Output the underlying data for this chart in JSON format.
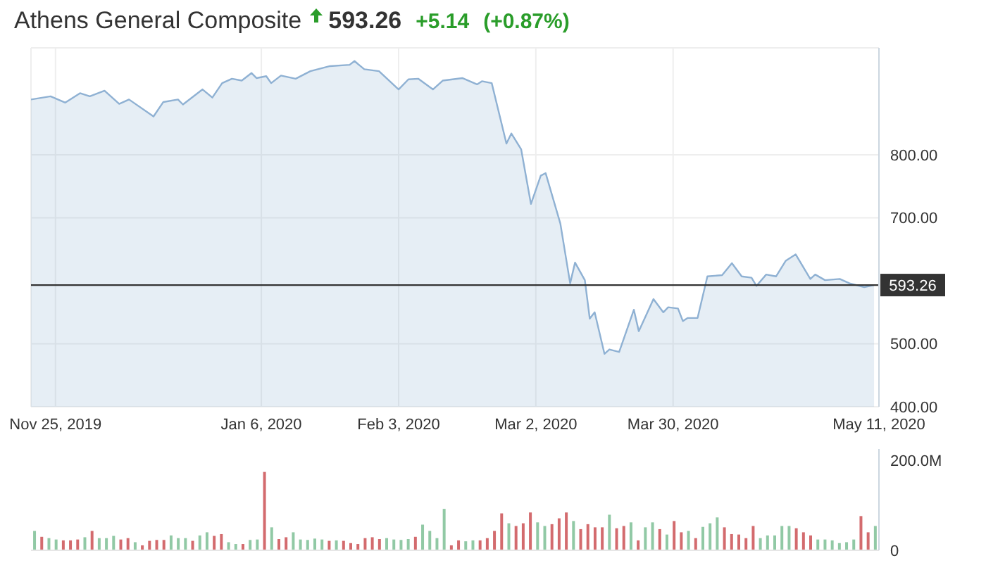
{
  "chart_data": [
    {
      "type": "area",
      "title": "Athens General Composite",
      "annotations": [
        "593.26",
        "+5.14",
        "(+0.87%)"
      ],
      "x": [
        "2019-11-20",
        "2019-11-24",
        "2019-11-27",
        "2019-11-30",
        "2019-12-02",
        "2019-12-05",
        "2019-12-08",
        "2019-12-10",
        "2019-12-15",
        "2019-12-17",
        "2019-12-20",
        "2019-12-21",
        "2019-12-25",
        "2019-12-27",
        "2019-12-29",
        "2019-12-31",
        "2020-01-02",
        "2020-01-04",
        "2020-01-05",
        "2020-01-07",
        "2020-01-08",
        "2020-01-10",
        "2020-01-13",
        "2020-01-16",
        "2020-01-20",
        "2020-01-24",
        "2020-01-25",
        "2020-01-27",
        "2020-01-30",
        "2020-02-03",
        "2020-02-05",
        "2020-02-07",
        "2020-02-10",
        "2020-02-12",
        "2020-02-16",
        "2020-02-19",
        "2020-02-20",
        "2020-02-22",
        "2020-02-23",
        "2020-02-25",
        "2020-02-26",
        "2020-02-28",
        "2020-03-01",
        "2020-03-03",
        "2020-03-04",
        "2020-03-07",
        "2020-03-09",
        "2020-03-10",
        "2020-03-12",
        "2020-03-13",
        "2020-03-14",
        "2020-03-16",
        "2020-03-17",
        "2020-03-19",
        "2020-03-22",
        "2020-03-23",
        "2020-03-26",
        "2020-03-28",
        "2020-03-29",
        "2020-03-31",
        "2020-04-01",
        "2020-04-02",
        "2020-04-04",
        "2020-04-06",
        "2020-04-09",
        "2020-04-11",
        "2020-04-13",
        "2020-04-15",
        "2020-04-16",
        "2020-04-18",
        "2020-04-20",
        "2020-04-22",
        "2020-04-24",
        "2020-04-27",
        "2020-04-28",
        "2020-04-30",
        "2020-05-03",
        "2020-05-05",
        "2020-05-08",
        "2020-05-10"
      ],
      "series": [
        {
          "color": "#8fb1d3",
          "values": [
            888,
            893,
            883,
            898,
            893,
            902,
            881,
            888,
            861,
            884,
            888,
            880,
            904,
            891,
            914,
            921,
            918,
            930,
            922,
            925,
            914,
            926,
            921,
            933,
            941,
            943,
            949,
            936,
            933,
            904,
            920,
            921,
            904,
            918,
            922,
            912,
            917,
            914,
            882,
            818,
            834,
            809,
            722,
            767,
            771,
            691,
            596,
            629,
            601,
            540,
            550,
            484,
            491,
            487,
            554,
            520,
            571,
            550,
            558,
            556,
            536,
            541,
            541,
            607,
            609,
            628,
            607,
            605,
            592,
            610,
            607,
            632,
            642,
            603,
            610,
            601,
            603,
            596,
            590,
            593.26
          ]
        }
      ],
      "xlim": [
        "2019-11-20",
        "2020-05-11"
      ],
      "xticks": [
        {
          "value": "2019-11-25",
          "label": "Nov 25, 2019"
        },
        {
          "value": "2020-01-06",
          "label": "Jan 6, 2020"
        },
        {
          "value": "2020-02-03",
          "label": "Feb 3, 2020"
        },
        {
          "value": "2020-03-02",
          "label": "Mar 2, 2020"
        },
        {
          "value": "2020-03-30",
          "label": "Mar 30, 2020"
        },
        {
          "value": "2020-05-11",
          "label": "May 11, 2020"
        }
      ],
      "ylim": [
        400,
        970
      ],
      "yticks": [
        {
          "value": 400,
          "label": "400.00"
        },
        {
          "value": 500,
          "label": "500.00"
        },
        {
          "value": 700,
          "label": "700.00"
        },
        {
          "value": 800,
          "label": "800.00"
        }
      ],
      "ref_lines": [
        {
          "axis": "y",
          "value": 593.26,
          "label": "593.26",
          "color": "#333333"
        }
      ],
      "grid": true
    },
    {
      "type": "bar",
      "categories": [
        null,
        null,
        null,
        null,
        null,
        null,
        null,
        null,
        null,
        null,
        null,
        null,
        null,
        null,
        null,
        null,
        null,
        null,
        null,
        null,
        null,
        null,
        null,
        null,
        null,
        null,
        null,
        null,
        null,
        null,
        null,
        null,
        null,
        null,
        null,
        null,
        null,
        null,
        null,
        null,
        null,
        null,
        null,
        null,
        null,
        null,
        null,
        null,
        null,
        null,
        null,
        null,
        null,
        null,
        null,
        null,
        null,
        null,
        null,
        null,
        null,
        null,
        null,
        null,
        null,
        null,
        null,
        null,
        null,
        null,
        null,
        null,
        null,
        null,
        null,
        null,
        null,
        null,
        null,
        null,
        null,
        null,
        null,
        null,
        null,
        null,
        null,
        null,
        null,
        null,
        null,
        null,
        null,
        null,
        null,
        null,
        null,
        null,
        null,
        null,
        null,
        null,
        null,
        null,
        null,
        null,
        null,
        null,
        null,
        null,
        null,
        null,
        null,
        null,
        null,
        null,
        null,
        null
      ],
      "values": [
        43,
        30,
        27,
        24,
        22,
        22,
        24,
        29,
        43,
        27,
        27,
        32,
        24,
        27,
        18,
        11,
        21,
        23,
        23,
        33,
        27,
        27,
        21,
        33,
        40,
        32,
        36,
        18,
        14,
        14,
        23,
        24,
        174,
        51,
        25,
        29,
        40,
        24,
        23,
        26,
        24,
        21,
        22,
        21,
        16,
        14,
        27,
        29,
        25,
        27,
        24,
        23,
        25,
        30,
        57,
        43,
        27,
        92,
        11,
        22,
        20,
        22,
        22,
        27,
        43,
        82,
        60,
        54,
        60,
        84,
        62,
        54,
        58,
        71,
        84,
        65,
        47,
        58,
        51,
        51,
        79,
        49,
        54,
        62,
        22,
        51,
        62,
        47,
        35,
        65,
        40,
        43,
        27,
        52,
        60,
        73,
        51,
        36,
        35,
        27,
        54,
        27,
        33,
        33,
        54,
        54,
        49,
        40,
        33,
        24,
        24,
        22,
        16,
        18,
        24,
        76,
        40,
        54
      ],
      "colors": [
        "#91c9a5",
        "#d36b6e",
        "#91c9a5",
        "#91c9a5",
        "#d36b6e",
        "#d36b6e",
        "#d36b6e",
        "#91c9a5",
        "#d36b6e",
        "#91c9a5",
        "#91c9a5",
        "#91c9a5",
        "#d36b6e",
        "#d36b6e",
        "#91c9a5",
        "#d36b6e",
        "#d36b6e",
        "#d36b6e",
        "#d36b6e",
        "#91c9a5",
        "#91c9a5",
        "#91c9a5",
        "#d36b6e",
        "#91c9a5",
        "#91c9a5",
        "#d36b6e",
        "#d36b6e",
        "#91c9a5",
        "#91c9a5",
        "#d36b6e",
        "#91c9a5",
        "#91c9a5",
        "#d36b6e",
        "#91c9a5",
        "#d36b6e",
        "#d36b6e",
        "#91c9a5",
        "#91c9a5",
        "#91c9a5",
        "#91c9a5",
        "#91c9a5",
        "#d36b6e",
        "#91c9a5",
        "#d36b6e",
        "#d36b6e",
        "#d36b6e",
        "#d36b6e",
        "#d36b6e",
        "#d36b6e",
        "#91c9a5",
        "#91c9a5",
        "#91c9a5",
        "#91c9a5",
        "#d36b6e",
        "#91c9a5",
        "#91c9a5",
        "#91c9a5",
        "#91c9a5",
        "#d36b6e",
        "#d36b6e",
        "#91c9a5",
        "#91c9a5",
        "#d36b6e",
        "#d36b6e",
        "#d36b6e",
        "#d36b6e",
        "#91c9a5",
        "#d36b6e",
        "#d36b6e",
        "#d36b6e",
        "#91c9a5",
        "#91c9a5",
        "#d36b6e",
        "#d36b6e",
        "#d36b6e",
        "#91c9a5",
        "#d36b6e",
        "#d36b6e",
        "#d36b6e",
        "#d36b6e",
        "#91c9a5",
        "#d36b6e",
        "#d36b6e",
        "#91c9a5",
        "#d36b6e",
        "#91c9a5",
        "#91c9a5",
        "#d36b6e",
        "#91c9a5",
        "#d36b6e",
        "#d36b6e",
        "#91c9a5",
        "#d36b6e",
        "#91c9a5",
        "#91c9a5",
        "#91c9a5",
        "#d36b6e",
        "#d36b6e",
        "#d36b6e",
        "#d36b6e",
        "#d36b6e",
        "#91c9a5",
        "#91c9a5",
        "#91c9a5",
        "#91c9a5",
        "#91c9a5",
        "#d36b6e",
        "#d36b6e",
        "#d36b6e",
        "#91c9a5",
        "#91c9a5",
        "#91c9a5",
        "#91c9a5",
        "#91c9a5",
        "#91c9a5",
        "#d36b6e",
        "#d36b6e",
        "#91c9a5"
      ],
      "ylim": [
        0,
        225
      ],
      "yticks": [
        {
          "value": 0,
          "label": "0"
        },
        {
          "value": 200,
          "label": "200.0M"
        }
      ]
    }
  ]
}
